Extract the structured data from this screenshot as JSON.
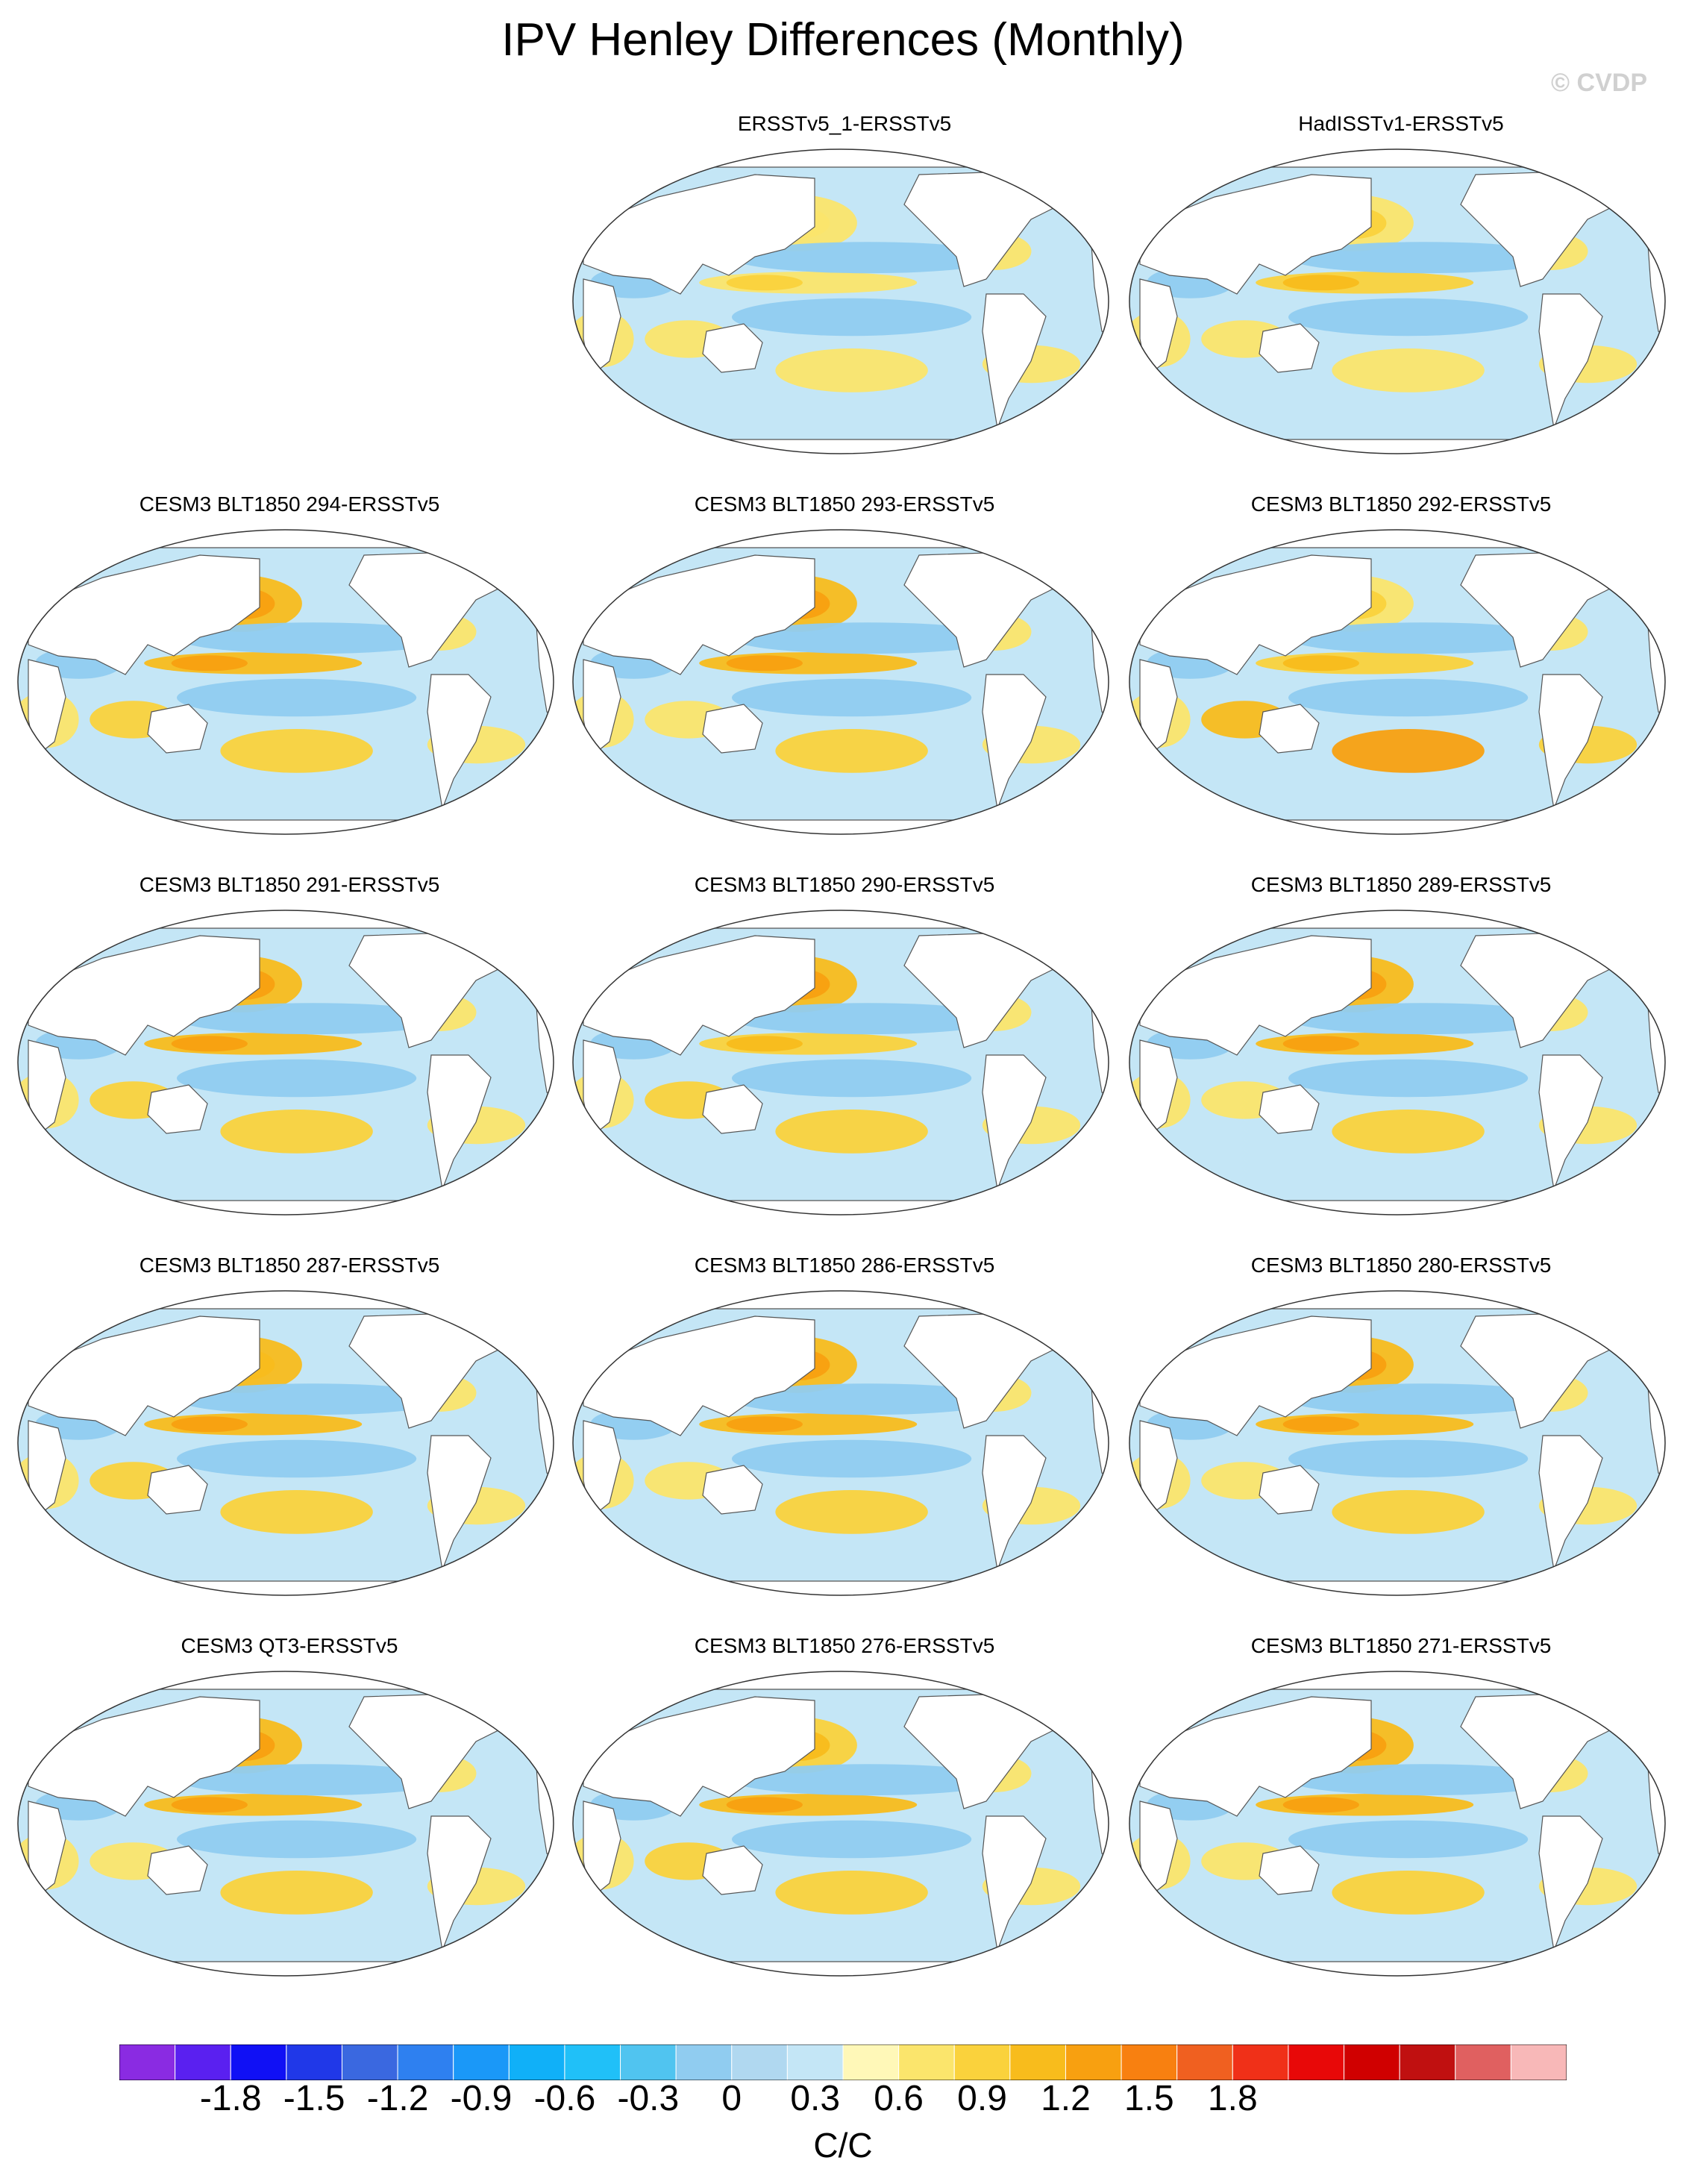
{
  "title": "IPV Henley Differences (Monthly)",
  "watermark": "© CVDP",
  "chart_data": {
    "type": "heatmap",
    "projection": "Robinson (Pacific-centered)",
    "variable": "IPV Henley differences (regression pattern, model minus ERSSTv5)",
    "panels": [
      {
        "label": "ERSSTv5_1-ERSSTv5",
        "row": 0,
        "col": 1,
        "nino_strength": 0.35,
        "npac_strength": 0.15,
        "south_strength": 0.25
      },
      {
        "label": "HadISSTv1-ERSSTv5",
        "row": 0,
        "col": 2,
        "nino_strength": 0.55,
        "npac_strength": 0.35,
        "south_strength": 0.3
      },
      {
        "label": "CESM3 BLT1850 294-ERSSTv5",
        "row": 1,
        "col": 0,
        "nino_strength": 0.7,
        "npac_strength": 0.7,
        "south_strength": 0.55
      },
      {
        "label": "CESM3 BLT1850 293-ERSSTv5",
        "row": 1,
        "col": 1,
        "nino_strength": 0.65,
        "npac_strength": 0.7,
        "south_strength": 0.4
      },
      {
        "label": "CESM3 BLT1850 292-ERSSTv5",
        "row": 1,
        "col": 2,
        "nino_strength": 0.6,
        "npac_strength": 0.2,
        "south_strength": 0.9
      },
      {
        "label": "CESM3 BLT1850 291-ERSSTv5",
        "row": 2,
        "col": 0,
        "nino_strength": 0.75,
        "npac_strength": 0.75,
        "south_strength": 0.6
      },
      {
        "label": "CESM3 BLT1850 290-ERSSTv5",
        "row": 2,
        "col": 1,
        "nino_strength": 0.6,
        "npac_strength": 0.7,
        "south_strength": 0.55
      },
      {
        "label": "CESM3 BLT1850 289-ERSSTv5",
        "row": 2,
        "col": 2,
        "nino_strength": 0.7,
        "npac_strength": 0.7,
        "south_strength": 0.5
      },
      {
        "label": "CESM3 BLT1850 287-ERSSTv5",
        "row": 3,
        "col": 0,
        "nino_strength": 0.75,
        "npac_strength": 0.65,
        "south_strength": 0.55
      },
      {
        "label": "CESM3 BLT1850 286-ERSSTv5",
        "row": 3,
        "col": 1,
        "nino_strength": 0.7,
        "npac_strength": 0.7,
        "south_strength": 0.5
      },
      {
        "label": "CESM3 BLT1850 280-ERSSTv5",
        "row": 3,
        "col": 2,
        "nino_strength": 0.75,
        "npac_strength": 0.7,
        "south_strength": 0.5
      },
      {
        "label": "CESM3 QT3-ERSSTv5",
        "row": 4,
        "col": 0,
        "nino_strength": 0.8,
        "npac_strength": 0.75,
        "south_strength": 0.45
      },
      {
        "label": "CESM3 BLT1850 276-ERSSTv5",
        "row": 4,
        "col": 1,
        "nino_strength": 0.8,
        "npac_strength": 0.6,
        "south_strength": 0.55
      },
      {
        "label": "CESM3 BLT1850 271-ERSSTv5",
        "row": 4,
        "col": 2,
        "nino_strength": 0.8,
        "npac_strength": 0.7,
        "south_strength": 0.5
      }
    ],
    "colorbar": {
      "units": "C/C",
      "levels_min": -2.0,
      "levels_max": 2.0,
      "interval": 0.2,
      "tick_labels": [
        "-1.8",
        "-1.5",
        "-1.2",
        "-0.9",
        "-0.6",
        "-0.3",
        "0",
        "0.3",
        "0.6",
        "0.9",
        "1.2",
        "1.5",
        "1.8"
      ],
      "tick_values": [
        -1.8,
        -1.5,
        -1.2,
        -0.9,
        -0.6,
        -0.3,
        0,
        0.3,
        0.6,
        0.9,
        1.2,
        1.5,
        1.8
      ],
      "colors": [
        "#8a2be2",
        "#5a20f0",
        "#1010f5",
        "#2038e8",
        "#3a68e0",
        "#2e80f0",
        "#1a98f8",
        "#10b0f8",
        "#20c0f8",
        "#50c4f0",
        "#90ccf0",
        "#b0d8f0",
        "#c4e6f6",
        "#fff8b8",
        "#fbe56c",
        "#fad23c",
        "#f8bc1c",
        "#f8a010",
        "#f88010",
        "#f06020",
        "#f03018",
        "#e80808",
        "#d00000",
        "#c01010",
        "#e06060",
        "#f8b8b8"
      ]
    }
  }
}
